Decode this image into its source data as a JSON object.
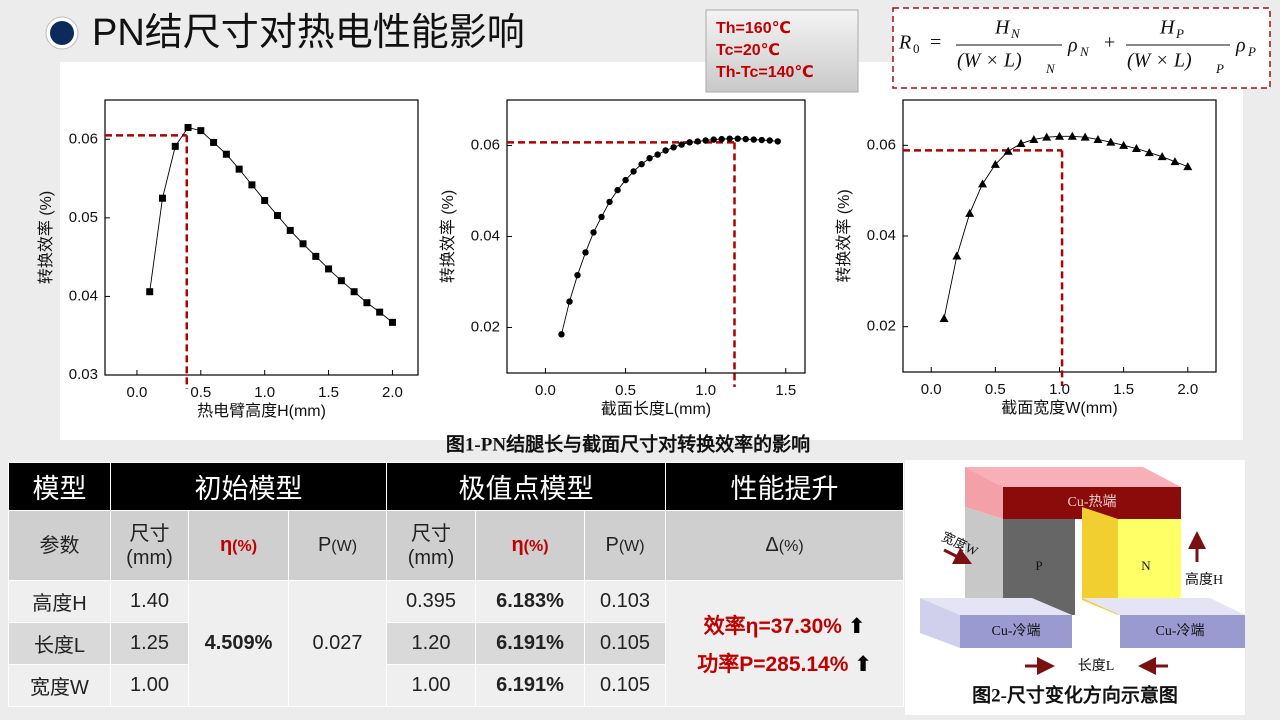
{
  "title": "PN结尺寸对热电性能影响",
  "conditions": [
    "Th=160℃",
    "Tc=20℃",
    "Th-Tc=140℃"
  ],
  "formula": {
    "lhs": "R",
    "lhs_sub": "0",
    "eq": "=",
    "plus": "+",
    "terms": [
      {
        "num": "H",
        "num_sub": "N",
        "den": "(W × L)",
        "den_sub": "N",
        "rho": "ρ",
        "rho_sub": "N"
      },
      {
        "num": "H",
        "num_sub": "P",
        "den": "(W × L)",
        "den_sub": "P",
        "rho": "ρ",
        "rho_sub": "P"
      }
    ]
  },
  "chart_data": [
    {
      "type": "line",
      "xlabel": "热电臂高度H(mm)",
      "ylabel": "转换效率 (%)",
      "x": [
        0.1,
        0.2,
        0.3,
        0.4,
        0.5,
        0.6,
        0.7,
        0.8,
        0.9,
        1.0,
        1.1,
        1.2,
        1.3,
        1.4,
        1.5,
        1.6,
        1.7,
        1.8,
        1.9,
        2.0
      ],
      "series": [
        {
          "color": "#000000",
          "marker": "square",
          "values": [
            0.0406,
            0.0525,
            0.0591,
            0.0615,
            0.0611,
            0.0596,
            0.0581,
            0.0562,
            0.0542,
            0.0522,
            0.0503,
            0.0484,
            0.0467,
            0.0451,
            0.0435,
            0.042,
            0.0406,
            0.0392,
            0.038,
            0.0367
          ]
        }
      ],
      "xlim": [
        -0.25,
        2.2
      ],
      "ylim": [
        0.03,
        0.065
      ],
      "xticks": [
        {
          "value": 0,
          "label": "0.0"
        },
        0.5,
        {
          "value": 1,
          "label": "1.0"
        },
        1.5,
        {
          "value": 2,
          "label": "2.0"
        }
      ],
      "yticks": [
        0.03,
        0.04,
        0.05,
        0.06
      ],
      "reference": {
        "x": 0.39,
        "y": 0.0605,
        "color": "#b00000"
      }
    },
    {
      "type": "line",
      "xlabel": "截面长度L(mm)",
      "ylabel": "转换效率 (%)",
      "x": [
        0.1,
        0.15,
        0.2,
        0.25,
        0.3,
        0.35,
        0.4,
        0.45,
        0.5,
        0.55,
        0.6,
        0.65,
        0.7,
        0.75,
        0.8,
        0.85,
        0.9,
        0.95,
        1.0,
        1.05,
        1.1,
        1.15,
        1.2,
        1.25,
        1.3,
        1.35,
        1.4,
        1.45
      ],
      "series": [
        {
          "color": "#000000",
          "marker": "circle",
          "values": [
            0.0185,
            0.0257,
            0.0315,
            0.0365,
            0.0409,
            0.0443,
            0.0476,
            0.0502,
            0.0524,
            0.0543,
            0.0559,
            0.0572,
            0.058,
            0.0589,
            0.0596,
            0.0602,
            0.0607,
            0.0609,
            0.0611,
            0.0613,
            0.0614,
            0.0615,
            0.0615,
            0.0614,
            0.0613,
            0.0612,
            0.0611,
            0.0609
          ]
        }
      ],
      "xlim": [
        -0.24,
        1.62
      ],
      "ylim": [
        0.01,
        0.07
      ],
      "xticks": [
        {
          "value": 0,
          "label": "0.0"
        },
        0.5,
        {
          "value": 1,
          "label": "1.0"
        },
        1.5
      ],
      "yticks": [
        0.02,
        0.04,
        0.06
      ],
      "reference": {
        "x": 1.18,
        "y": 0.0607,
        "color": "#b00000"
      }
    },
    {
      "type": "line",
      "xlabel": "截面宽度W(mm)",
      "ylabel": "转换效率 (%)",
      "x": [
        0.1,
        0.2,
        0.3,
        0.4,
        0.5,
        0.6,
        0.7,
        0.8,
        0.9,
        1.0,
        1.1,
        1.2,
        1.3,
        1.4,
        1.5,
        1.6,
        1.7,
        1.8,
        1.9,
        2.0
      ],
      "series": [
        {
          "color": "#000000",
          "marker": "triangle",
          "values": [
            0.0218,
            0.0356,
            0.045,
            0.0515,
            0.0558,
            0.0587,
            0.0604,
            0.0613,
            0.0618,
            0.062,
            0.062,
            0.0618,
            0.0613,
            0.0607,
            0.06,
            0.0593,
            0.0584,
            0.0575,
            0.0564,
            0.0553
          ]
        }
      ],
      "xlim": [
        -0.22,
        2.22
      ],
      "ylim": [
        0.01,
        0.07
      ],
      "xticks": [
        {
          "value": 0,
          "label": "0.0"
        },
        0.5,
        {
          "value": 1,
          "label": "1.0"
        },
        1.5,
        {
          "value": 2,
          "label": "2.0"
        }
      ],
      "yticks": [
        0.02,
        0.04,
        0.06
      ],
      "reference": {
        "x": 1.02,
        "y": 0.0589,
        "color": "#b00000"
      }
    }
  ],
  "figure1_caption": "图1-PN结腿长与截面尺寸对转换效率的影响",
  "table": {
    "header": [
      "模型",
      "初始模型",
      "极值点模型",
      "性能提升"
    ],
    "subheader": [
      {
        "name": "参数"
      },
      {
        "name": "尺寸",
        "unit": "(mm)"
      },
      {
        "name": "η",
        "unit": "(%)"
      },
      {
        "name": "P",
        "unit": "(W)"
      },
      {
        "name": "尺寸",
        "unit": "(mm)"
      },
      {
        "name": "η",
        "unit": "(%)"
      },
      {
        "name": "P",
        "unit": "(W)"
      },
      {
        "name": "Δ",
        "unit": "(%)"
      }
    ],
    "rows": [
      {
        "param": "高度H",
        "size": "1.40",
        "opt_size": "0.395",
        "opt_eta": "6.183%",
        "opt_p": "0.103"
      },
      {
        "param": "长度L",
        "size": "1.25",
        "opt_size": "1.20",
        "opt_eta": "6.191%",
        "opt_p": "0.105"
      },
      {
        "param": "宽度W",
        "size": "1.00",
        "opt_size": "1.00",
        "opt_eta": "6.191%",
        "opt_p": "0.105"
      }
    ],
    "initial_eta": "4.509%",
    "initial_p": "0.027",
    "improvement": [
      "效率η=37.30%",
      "功率P=285.14%"
    ]
  },
  "diagram": {
    "hot": "Cu-热端",
    "p": "P",
    "n": "N",
    "width": "宽度W",
    "height": "高度H",
    "cold_left": "Cu-冷端",
    "cold_right": "Cu-冷端",
    "length": "长度L"
  },
  "figure2_caption": "图2-尺寸变化方向示意图"
}
